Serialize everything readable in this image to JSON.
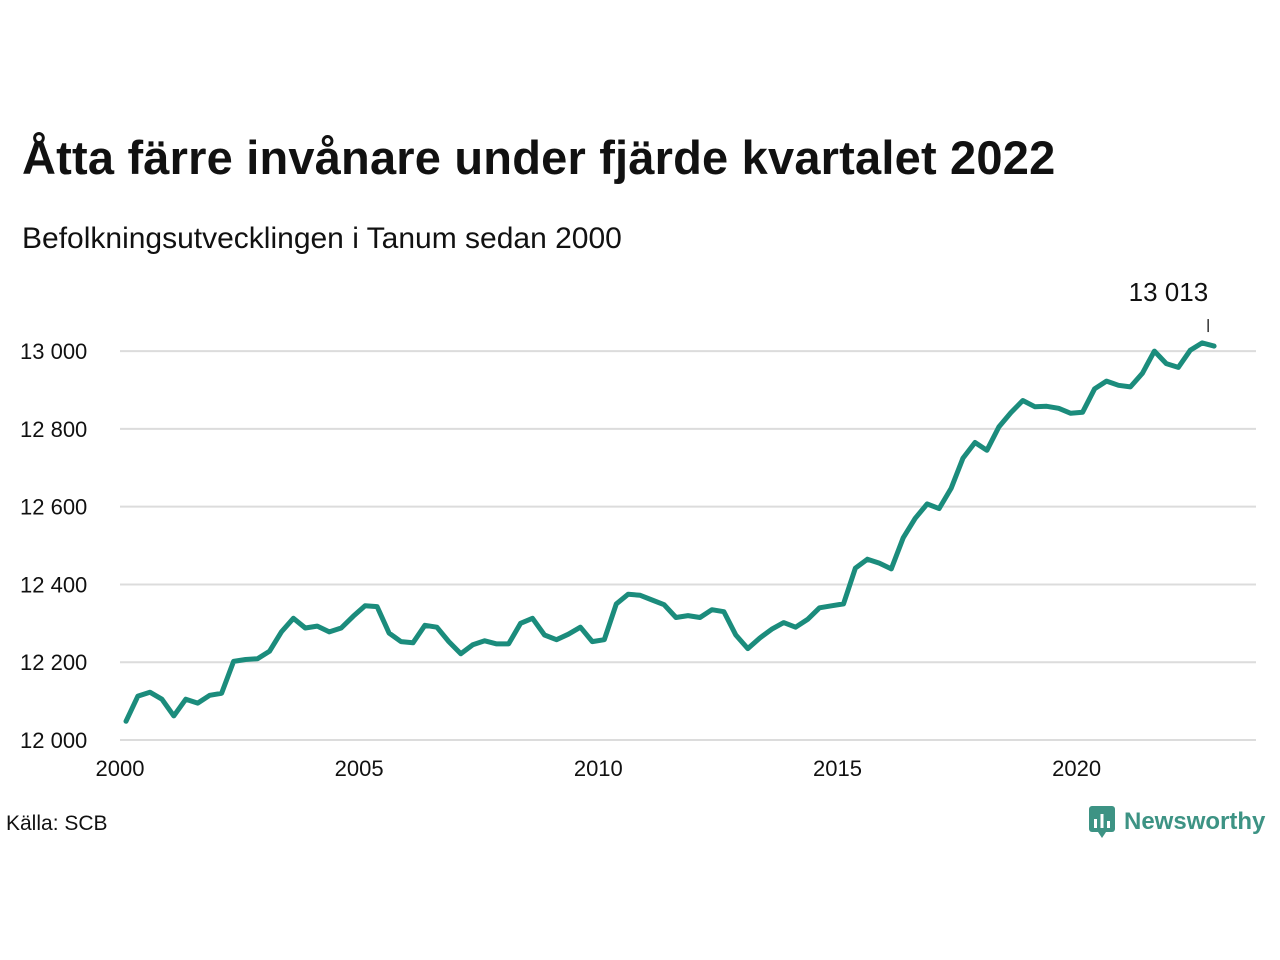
{
  "title": "Åtta färre invånare under fjärde kvartalet 2022",
  "subtitle": "Befolkningsutvecklingen i Tanum sedan 2000",
  "source": "Källa: SCB",
  "brand": "Newsworthy",
  "colors": {
    "line": "#1b8c7c",
    "grid": "#dcdcdc",
    "brand": "#3d9384"
  },
  "chart_data": {
    "type": "line",
    "title": "Åtta färre invånare under fjärde kvartalet 2022",
    "subtitle": "Befolkningsutvecklingen i Tanum sedan 2000",
    "xlabel": "",
    "ylabel": "",
    "xlim": [
      2000,
      2023.75
    ],
    "ylim": [
      12000,
      13080
    ],
    "x_ticks": [
      2000,
      2005,
      2010,
      2015,
      2020
    ],
    "x_tick_labels": [
      "2000",
      "2005",
      "2010",
      "2015",
      "2020"
    ],
    "y_ticks": [
      12000,
      12200,
      12400,
      12600,
      12800,
      13000
    ],
    "y_tick_labels": [
      "12 000",
      "12 200",
      "12 400",
      "12 600",
      "12 800",
      "13 000"
    ],
    "grid": true,
    "annotation": {
      "x": 2022.75,
      "y": 13013,
      "label": "13 013"
    },
    "series": [
      {
        "x_start": 2000.125,
        "x_step": 0.25,
        "values": [
          12048,
          12113,
          12123,
          12105,
          12062,
          12105,
          12095,
          12115,
          12120,
          12202,
          12207,
          12209,
          12228,
          12278,
          12313,
          12288,
          12293,
          12278,
          12288,
          12318,
          12345,
          12343,
          12275,
          12253,
          12250,
          12295,
          12290,
          12253,
          12222,
          12245,
          12255,
          12247,
          12247,
          12300,
          12313,
          12270,
          12258,
          12272,
          12290,
          12253,
          12258,
          12350,
          12375,
          12372,
          12360,
          12348,
          12315,
          12320,
          12315,
          12335,
          12330,
          12270,
          12235,
          12262,
          12285,
          12302,
          12290,
          12310,
          12340,
          12345,
          12350,
          12442,
          12465,
          12455,
          12440,
          12520,
          12570,
          12607,
          12595,
          12647,
          12725,
          12765,
          12745,
          12805,
          12842,
          12873,
          12857,
          12858,
          12853,
          12840,
          12843,
          12903,
          12923,
          12912,
          12908,
          12943,
          13000,
          12968,
          12958,
          13002,
          13021,
          13013
        ]
      }
    ]
  }
}
